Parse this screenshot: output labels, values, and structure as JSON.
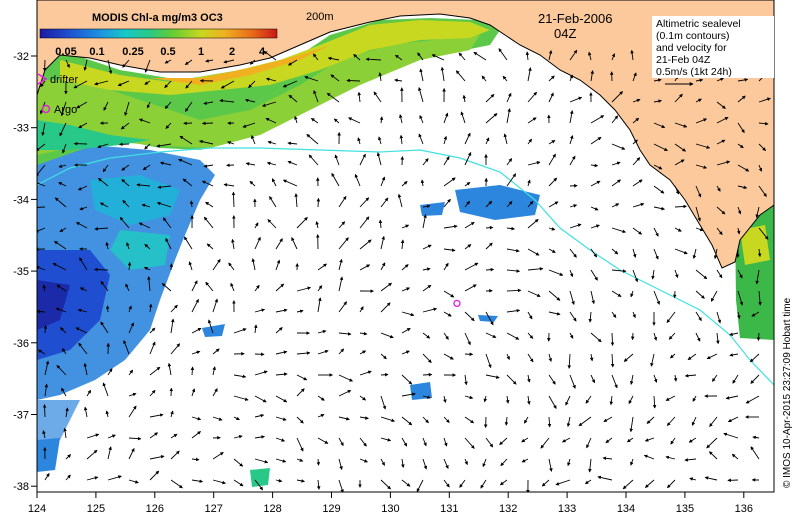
{
  "colorbar": {
    "title": "MODIS Chl-a mg/m3 OC3",
    "ticks": [
      "0.05",
      "0.1",
      "0.25",
      "0.5",
      "1",
      "2",
      "4"
    ],
    "gradient_colors": [
      "#1a1aa0",
      "#1f4fd0",
      "#1e90e0",
      "#16c8c8",
      "#28c888",
      "#66cc33",
      "#c8d820",
      "#f0b020",
      "#e86818",
      "#c81818"
    ]
  },
  "isobath_label": "200m",
  "date": "21-Feb-2006",
  "time": "04Z",
  "altimetry_note": [
    "Altimetric sealevel",
    "(0.1m contours)",
    "and velocity for",
    "21-Feb 04Z",
    "0.5m/s (1kt 24h)"
  ],
  "legend": {
    "drifter": "drifter",
    "argo": "Argo"
  },
  "credit": "© IMOS 10-Apr-2015 23:27:09 Hobart time",
  "axes": {
    "x_ticks": [
      "124",
      "125",
      "126",
      "127",
      "128",
      "129",
      "130",
      "131",
      "132",
      "133",
      "134",
      "135",
      "136"
    ],
    "y_ticks": [
      "-32",
      "-33",
      "-34",
      "-35",
      "-36",
      "-37",
      "-38"
    ]
  },
  "colors": {
    "land": "#fbc99c",
    "isobath": "#40e0e0",
    "argo": "#e020e0",
    "drifter": "#e020e0"
  },
  "argo_float": {
    "lon": 131.13,
    "lat": -35.45
  }
}
